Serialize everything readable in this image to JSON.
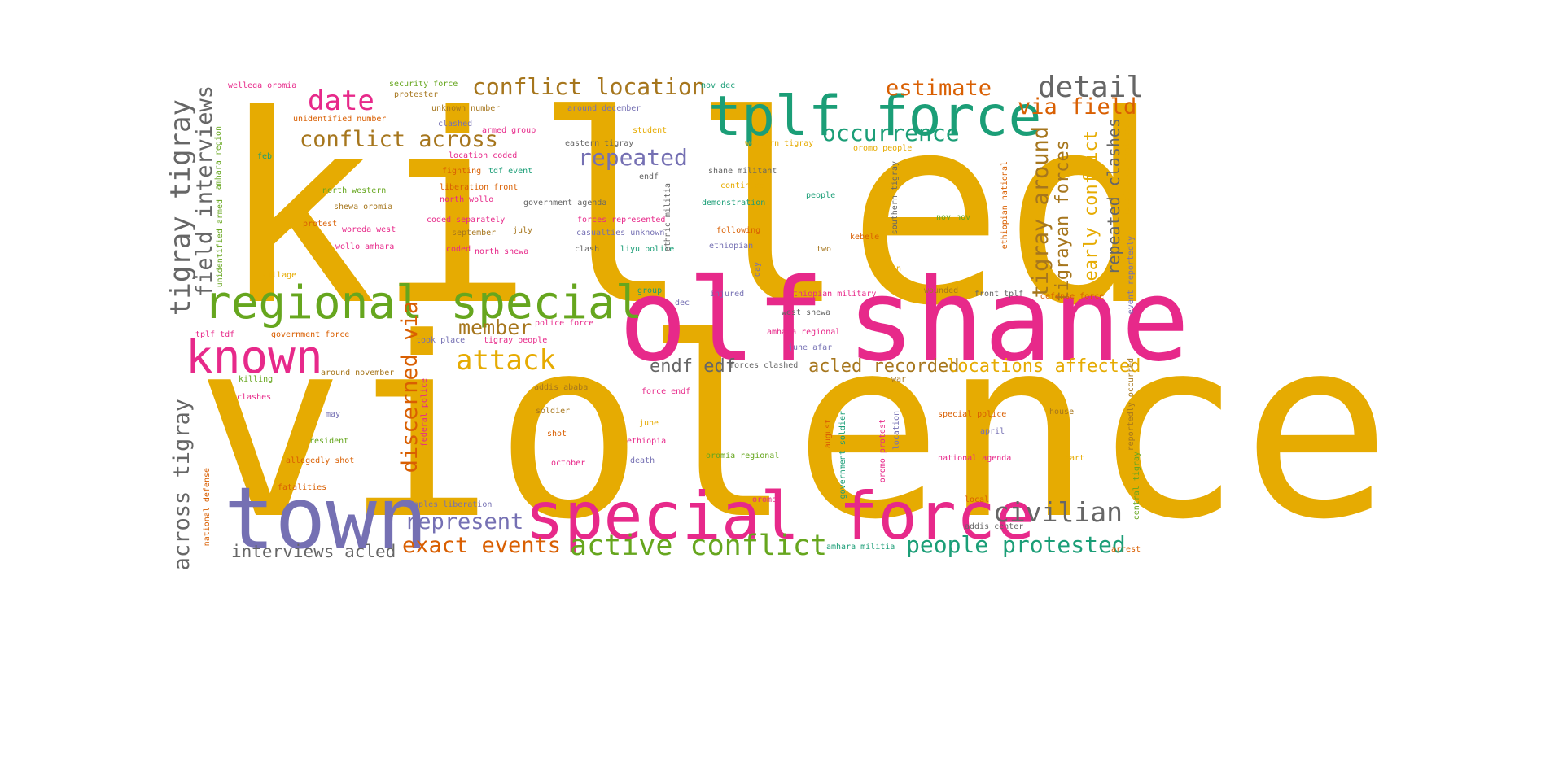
{
  "palette": {
    "gold": "#e6ab02",
    "pink": "#e7298a",
    "teal": "#1b9e77",
    "green": "#66a61e",
    "purple": "#7570b3",
    "orange": "#d95f02",
    "brown": "#a6761d",
    "gray": "#666666"
  },
  "words": [
    {
      "text": "killed",
      "color": "gold"
    },
    {
      "text": "violence",
      "color": "gold"
    },
    {
      "text": "olf",
      "color": "pink"
    },
    {
      "text": "shane",
      "color": "pink"
    },
    {
      "text": "special force",
      "color": "pink"
    },
    {
      "text": "town",
      "color": "purple"
    },
    {
      "text": "tplf force",
      "color": "teal"
    },
    {
      "text": "regional special",
      "color": "green"
    },
    {
      "text": "known",
      "color": "pink"
    },
    {
      "text": "conflict location",
      "color": "brown"
    },
    {
      "text": "detail",
      "color": "gray"
    },
    {
      "text": "estimate",
      "color": "orange"
    },
    {
      "text": "date",
      "color": "pink"
    },
    {
      "text": "conflict across",
      "color": "brown"
    },
    {
      "text": "occurrence",
      "color": "teal"
    },
    {
      "text": "via field",
      "color": "orange"
    },
    {
      "text": "repeated",
      "color": "purple"
    },
    {
      "text": "attack",
      "color": "gold"
    },
    {
      "text": "member",
      "color": "brown"
    },
    {
      "text": "civilian",
      "color": "gray"
    },
    {
      "text": "represent",
      "color": "purple"
    },
    {
      "text": "exact events",
      "color": "orange"
    },
    {
      "text": "active conflict",
      "color": "green"
    },
    {
      "text": "people protested",
      "color": "teal"
    },
    {
      "text": "interviews acled",
      "color": "gray"
    },
    {
      "text": "acled recorded",
      "color": "brown"
    },
    {
      "text": "locations affected",
      "color": "gold"
    },
    {
      "text": "endf edf",
      "color": "gray"
    },
    {
      "text": "tigray tigray",
      "color": "gray"
    },
    {
      "text": "field interviews",
      "color": "gray"
    },
    {
      "text": "across tigray",
      "color": "gray"
    },
    {
      "text": "discerned via",
      "color": "orange"
    },
    {
      "text": "tigray around",
      "color": "brown"
    },
    {
      "text": "tigrayan forces",
      "color": "brown"
    },
    {
      "text": "early conflict",
      "color": "gold"
    },
    {
      "text": "repeated clashes",
      "color": "gray"
    },
    {
      "text": "wellega oromia",
      "color": "pink"
    },
    {
      "text": "security force",
      "color": "green"
    },
    {
      "text": "protester",
      "color": "brown"
    },
    {
      "text": "unknown number",
      "color": "brown"
    },
    {
      "text": "around december",
      "color": "purple"
    },
    {
      "text": "unidentified number",
      "color": "orange"
    },
    {
      "text": "clashed",
      "color": "purple"
    },
    {
      "text": "armed group",
      "color": "pink"
    },
    {
      "text": "student",
      "color": "gold"
    },
    {
      "text": "western tigray",
      "color": "gold"
    },
    {
      "text": "oromo people",
      "color": "gold"
    },
    {
      "text": "eastern tigray",
      "color": "gray"
    },
    {
      "text": "location coded",
      "color": "pink"
    },
    {
      "text": "tdf event",
      "color": "teal"
    },
    {
      "text": "fighting",
      "color": "orange"
    },
    {
      "text": "liberation front",
      "color": "orange"
    },
    {
      "text": "north western",
      "color": "green"
    },
    {
      "text": "north wollo",
      "color": "pink"
    },
    {
      "text": "shewa oromia",
      "color": "brown"
    },
    {
      "text": "government agenda",
      "color": "gray"
    },
    {
      "text": "shane militant",
      "color": "gray"
    },
    {
      "text": "continued",
      "color": "gold"
    },
    {
      "text": "demonstration",
      "color": "teal"
    },
    {
      "text": "people",
      "color": "teal"
    },
    {
      "text": "feb",
      "color": "teal"
    },
    {
      "text": "protest",
      "color": "orange"
    },
    {
      "text": "woreda west",
      "color": "pink"
    },
    {
      "text": "coded separately",
      "color": "pink"
    },
    {
      "text": "july",
      "color": "brown"
    },
    {
      "text": "september",
      "color": "brown"
    },
    {
      "text": "forces represented",
      "color": "pink"
    },
    {
      "text": "casualties unknown",
      "color": "purple"
    },
    {
      "text": "following",
      "color": "orange"
    },
    {
      "text": "kebele",
      "color": "orange"
    },
    {
      "text": "wollo amhara",
      "color": "pink"
    },
    {
      "text": "coded",
      "color": "pink"
    },
    {
      "text": "north shewa",
      "color": "pink"
    },
    {
      "text": "clash",
      "color": "gray"
    },
    {
      "text": "liyu police",
      "color": "teal"
    },
    {
      "text": "ethiopian",
      "color": "purple"
    },
    {
      "text": "two",
      "color": "brown"
    },
    {
      "text": "village",
      "color": "gold"
    },
    {
      "text": "group",
      "color": "teal"
    },
    {
      "text": "dec",
      "color": "purple"
    },
    {
      "text": "injured",
      "color": "purple"
    },
    {
      "text": "ethiopian military",
      "color": "pink"
    },
    {
      "text": "west shewa",
      "color": "gray"
    },
    {
      "text": "wounded",
      "color": "brown"
    },
    {
      "text": "front tplf",
      "color": "gray"
    },
    {
      "text": "defense force",
      "color": "orange"
    },
    {
      "text": "jan",
      "color": "gold"
    },
    {
      "text": "amhara regional",
      "color": "pink"
    },
    {
      "text": "june afar",
      "color": "purple"
    },
    {
      "text": "tplf tdf",
      "color": "pink"
    },
    {
      "text": "government force",
      "color": "orange"
    },
    {
      "text": "took place",
      "color": "purple"
    },
    {
      "text": "tigray people",
      "color": "pink"
    },
    {
      "text": "police force",
      "color": "pink"
    },
    {
      "text": "forces clashed",
      "color": "gray"
    },
    {
      "text": "killing",
      "color": "green"
    },
    {
      "text": "around november",
      "color": "brown"
    },
    {
      "text": "addis ababa",
      "color": "brown"
    },
    {
      "text": "soldier",
      "color": "brown"
    },
    {
      "text": "force endf",
      "color": "pink"
    },
    {
      "text": "war",
      "color": "brown"
    },
    {
      "text": "clashes",
      "color": "pink"
    },
    {
      "text": "may",
      "color": "purple"
    },
    {
      "text": "shot",
      "color": "orange"
    },
    {
      "text": "june",
      "color": "gold"
    },
    {
      "text": "special police",
      "color": "orange"
    },
    {
      "text": "house",
      "color": "brown"
    },
    {
      "text": "april",
      "color": "purple"
    },
    {
      "text": "resident",
      "color": "green"
    },
    {
      "text": "ethiopia",
      "color": "pink"
    },
    {
      "text": "allegedly shot",
      "color": "orange"
    },
    {
      "text": "october",
      "color": "pink"
    },
    {
      "text": "death",
      "color": "purple"
    },
    {
      "text": "oromia regional",
      "color": "green"
    },
    {
      "text": "national agenda",
      "color": "pink"
    },
    {
      "text": "part",
      "color": "gold"
    },
    {
      "text": "fatalities",
      "color": "orange"
    },
    {
      "text": "peoples liberation",
      "color": "purple"
    },
    {
      "text": "oromo",
      "color": "pink"
    },
    {
      "text": "local",
      "color": "orange"
    },
    {
      "text": "addis center",
      "color": "gray"
    },
    {
      "text": "amhara militia",
      "color": "teal"
    },
    {
      "text": "arrest",
      "color": "orange"
    },
    {
      "text": "nov dec",
      "color": "teal"
    },
    {
      "text": "nov nov",
      "color": "green"
    },
    {
      "text": "unidentified armed",
      "color": "green"
    },
    {
      "text": "amhara region",
      "color": "green"
    },
    {
      "text": "ethnic militia",
      "color": "gray"
    },
    {
      "text": "southern tigray",
      "color": "gray"
    },
    {
      "text": "ethiopian national",
      "color": "orange"
    },
    {
      "text": "fatalities mentioned",
      "color": "gold"
    },
    {
      "text": "event reportedly",
      "color": "purple"
    },
    {
      "text": "day",
      "color": "purple"
    },
    {
      "text": "federal police",
      "color": "pink"
    },
    {
      "text": "government soldier",
      "color": "teal"
    },
    {
      "text": "august",
      "color": "orange"
    },
    {
      "text": "oromo protest",
      "color": "pink"
    },
    {
      "text": "location",
      "color": "purple"
    },
    {
      "text": "reportedly occurred",
      "color": "brown"
    },
    {
      "text": "central tigray",
      "color": "green"
    },
    {
      "text": "national defense",
      "color": "orange"
    },
    {
      "text": "endf",
      "color": "gray"
    }
  ]
}
